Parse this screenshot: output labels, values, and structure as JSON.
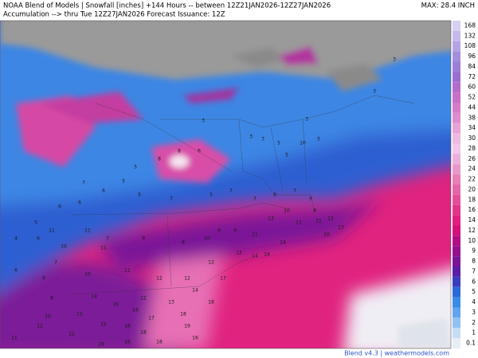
{
  "header": {
    "line1": "NOAA Blend of Models | Snowfall [inches] +144 Hours -- between 12Z21JAN2026-12Z27JAN2026",
    "line2": "Accumulation --> thru Tue 12Z27JAN2026  Forecast Issuance: 12Z",
    "max": "MAX: 28.4 INCH"
  },
  "colorbar": {
    "labels": [
      168,
      132,
      108,
      96,
      84,
      72,
      60,
      52,
      44,
      38,
      34,
      30,
      28,
      26,
      24,
      22,
      20,
      18,
      16,
      14,
      12,
      10,
      9,
      8,
      7,
      6,
      5,
      4,
      3,
      2,
      1,
      0.1
    ],
    "colors": [
      "#d8cff4",
      "#c7b8ec",
      "#b6a3e4",
      "#a58fdc",
      "#9c7fd6",
      "#9a6fd0",
      "#b46ccd",
      "#c86fc8",
      "#d57bc7",
      "#de8ccf",
      "#e7a2d8",
      "#eeb8e1",
      "#f1c6e8",
      "#ebb0da",
      "#e898c8",
      "#e67fb8",
      "#e566a8",
      "#e44d99",
      "#e3348b",
      "#e21f7e",
      "#d4107a",
      "#b20f85",
      "#94108f",
      "#7a1498",
      "#5a1ea6",
      "#3c3cc0",
      "#2a6ad8",
      "#3a8be6",
      "#61a5ee",
      "#93c2f2",
      "#c6dcf5",
      "#e8eef5"
    ]
  },
  "map_labels": [
    3,
    3,
    3,
    3,
    3,
    3,
    5,
    5,
    10,
    5,
    8,
    6,
    8,
    5,
    7,
    6,
    5,
    5,
    6,
    6,
    5,
    4,
    6,
    7,
    5,
    7,
    7,
    6,
    7,
    9,
    10,
    8,
    13,
    11,
    11,
    12,
    13,
    10,
    11,
    11,
    7,
    10,
    11,
    9,
    8,
    10,
    9,
    9,
    11,
    12,
    14,
    14,
    14,
    12,
    12,
    12,
    11,
    10,
    7,
    9,
    6,
    8,
    12,
    13,
    14,
    17,
    14,
    16,
    16,
    17,
    18,
    18,
    10,
    11,
    15,
    16,
    18,
    19,
    12,
    11,
    12,
    19,
    16,
    18,
    16
  ],
  "footer": "Blend v4.3 | weathermodels.com"
}
